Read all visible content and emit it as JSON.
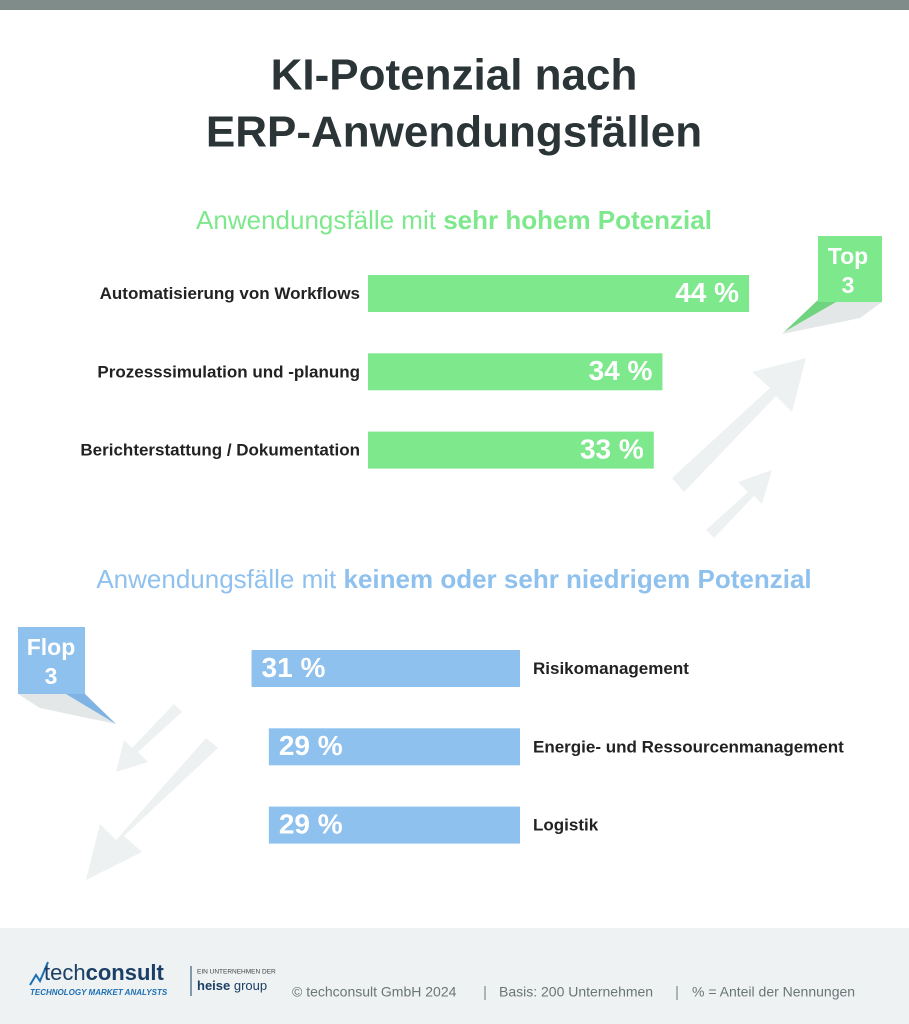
{
  "title": [
    "KI-Potenzial nach",
    "ERP-Anwendungsfällen"
  ],
  "chart_data": [
    {
      "type": "bar",
      "align": "left",
      "title": [
        "Anwendungsfälle mit",
        "sehr hohem Potenzial"
      ],
      "badge": [
        "Top",
        "3"
      ],
      "categories": [
        "Automatisierung von Workflows",
        "Prozesssimulation und -planung",
        "Berichterstattung / Dokumentation"
      ],
      "values": [
        44,
        34,
        33
      ],
      "value_labels": [
        "44 %",
        "34 %",
        "33 %"
      ],
      "color": "#7de88c"
    },
    {
      "type": "bar",
      "align": "right",
      "title": [
        "Anwendungsfälle mit",
        "keinem oder sehr niedrigem Potenzial"
      ],
      "badge": [
        "Flop",
        "3"
      ],
      "categories": [
        "Risikomanagement",
        "Energie- und Ressourcenmanagement",
        "Logistik"
      ],
      "values": [
        31,
        29,
        29
      ],
      "value_labels": [
        "31 %",
        "29 %",
        "29 %"
      ],
      "color": "#8fc1ee"
    }
  ],
  "footer": {
    "logo": [
      "tech",
      "consult"
    ],
    "logo_tagline": "TECHNOLOGY MARKET ANALYSTS",
    "partner_note": "EIN UNTERNEHMEN DER",
    "partner": [
      "heise",
      "group"
    ],
    "copyright": "© techconsult GmbH 2024",
    "basis": "Basis: 200 Unternehmen",
    "legend_note": "% = Anteil der Nennungen"
  }
}
